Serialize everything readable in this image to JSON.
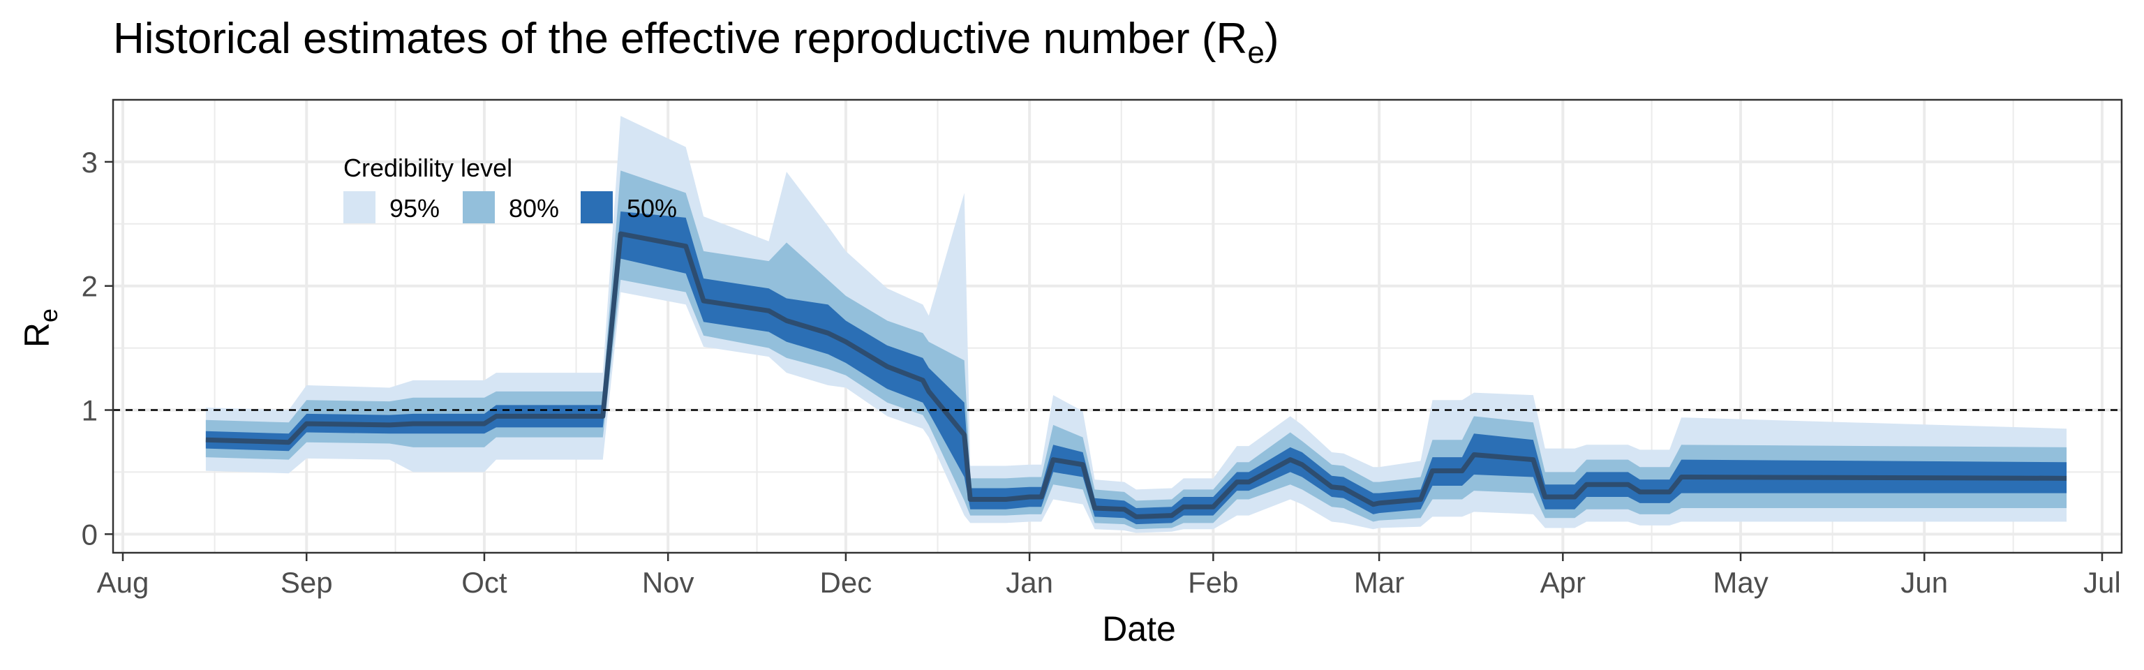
{
  "chart_data": {
    "type": "area",
    "title": {
      "main": "Historical estimates of the effective reproductive number (R",
      "sub": "e",
      "close": ")"
    },
    "xlabel": "Date",
    "ylabel": {
      "main": "R",
      "sub": "e"
    },
    "ylim": [
      -0.15,
      3.5
    ],
    "xlim": [
      "2020-08-01",
      "2021-07-01"
    ],
    "yticks": [
      0,
      1,
      2,
      3
    ],
    "ytick_labels": [
      "0",
      "1",
      "2",
      "3"
    ],
    "xticks": [
      "2020-08-01",
      "2020-09-01",
      "2020-10-01",
      "2020-11-01",
      "2020-12-01",
      "2021-01-01",
      "2021-02-01",
      "2021-03-01",
      "2021-04-01",
      "2021-05-01",
      "2021-06-01",
      "2021-07-01"
    ],
    "xtick_labels": [
      "Aug",
      "Sep",
      "Oct",
      "Nov",
      "Dec",
      "Jan",
      "Feb",
      "Mar",
      "Apr",
      "May",
      "Jun",
      "Jul"
    ],
    "grid": true,
    "reference_line": {
      "y": 1,
      "style": "dashed"
    },
    "legend": {
      "title": "Credibility level",
      "position": "top-left",
      "entries": [
        {
          "label": "95%",
          "color": "#d6e5f4"
        },
        {
          "label": "80%",
          "color": "#93bfdb"
        },
        {
          "label": "50%",
          "color": "#2b6fb5"
        }
      ]
    },
    "colors": {
      "line": "#2d4d70",
      "ci95": "#d6e5f4",
      "ci80": "#93bfdb",
      "ci50": "#2b6fb5",
      "grid": "#ebebeb"
    },
    "series": {
      "x": [
        "2020-08-15",
        "2020-08-29",
        "2020-09-01",
        "2020-09-15",
        "2020-09-19",
        "2020-10-01",
        "2020-10-03",
        "2020-10-21",
        "2020-10-24",
        "2020-11-04",
        "2020-11-07",
        "2020-11-18",
        "2020-11-21",
        "2020-11-28",
        "2020-12-01",
        "2020-12-08",
        "2020-12-14",
        "2020-12-15",
        "2020-12-21",
        "2020-12-22",
        "2020-12-28",
        "2021-01-01",
        "2021-01-03",
        "2021-01-05",
        "2021-01-10",
        "2021-01-12",
        "2021-01-17",
        "2021-01-19",
        "2021-01-25",
        "2021-01-27",
        "2021-02-01",
        "2021-02-05",
        "2021-02-07",
        "2021-02-14",
        "2021-02-16",
        "2021-02-21",
        "2021-02-23",
        "2021-02-28",
        "2021-03-01",
        "2021-03-08",
        "2021-03-10",
        "2021-03-15",
        "2021-03-17",
        "2021-03-27",
        "2021-03-29",
        "2021-04-03",
        "2021-04-05",
        "2021-04-12",
        "2021-04-14",
        "2021-04-19",
        "2021-04-21",
        "2021-06-25"
      ],
      "median": [
        0.76,
        0.74,
        0.89,
        0.88,
        0.89,
        0.89,
        0.95,
        0.95,
        2.42,
        2.32,
        1.88,
        1.8,
        1.72,
        1.62,
        1.55,
        1.35,
        1.24,
        1.15,
        0.8,
        0.28,
        0.28,
        0.3,
        0.3,
        0.6,
        0.56,
        0.21,
        0.2,
        0.14,
        0.15,
        0.22,
        0.22,
        0.42,
        0.42,
        0.6,
        0.56,
        0.38,
        0.37,
        0.24,
        0.25,
        0.28,
        0.51,
        0.51,
        0.64,
        0.6,
        0.3,
        0.3,
        0.4,
        0.4,
        0.34,
        0.34,
        0.46,
        0.45
      ],
      "lo50": [
        0.69,
        0.67,
        0.82,
        0.81,
        0.81,
        0.81,
        0.86,
        0.86,
        2.22,
        2.1,
        1.71,
        1.63,
        1.55,
        1.45,
        1.38,
        1.17,
        1.06,
        0.98,
        0.46,
        0.2,
        0.2,
        0.22,
        0.22,
        0.5,
        0.46,
        0.14,
        0.13,
        0.08,
        0.09,
        0.15,
        0.15,
        0.35,
        0.35,
        0.5,
        0.46,
        0.3,
        0.29,
        0.16,
        0.17,
        0.2,
        0.39,
        0.39,
        0.48,
        0.46,
        0.2,
        0.2,
        0.3,
        0.3,
        0.25,
        0.25,
        0.33,
        0.33
      ],
      "hi50": [
        0.83,
        0.81,
        0.97,
        0.96,
        0.97,
        0.97,
        1.04,
        1.04,
        2.6,
        2.55,
        2.06,
        1.98,
        1.9,
        1.85,
        1.72,
        1.52,
        1.42,
        1.34,
        1.06,
        0.37,
        0.37,
        0.38,
        0.38,
        0.72,
        0.66,
        0.29,
        0.27,
        0.21,
        0.22,
        0.3,
        0.3,
        0.5,
        0.5,
        0.7,
        0.66,
        0.47,
        0.46,
        0.33,
        0.33,
        0.36,
        0.62,
        0.62,
        0.81,
        0.76,
        0.4,
        0.4,
        0.5,
        0.5,
        0.44,
        0.44,
        0.6,
        0.58
      ],
      "lo80": [
        0.62,
        0.6,
        0.74,
        0.73,
        0.7,
        0.7,
        0.78,
        0.78,
        2.05,
        1.95,
        1.6,
        1.5,
        1.42,
        1.33,
        1.28,
        1.06,
        0.96,
        0.88,
        0.27,
        0.15,
        0.15,
        0.16,
        0.16,
        0.4,
        0.36,
        0.09,
        0.08,
        0.04,
        0.05,
        0.09,
        0.09,
        0.28,
        0.28,
        0.4,
        0.36,
        0.22,
        0.21,
        0.1,
        0.11,
        0.13,
        0.28,
        0.28,
        0.35,
        0.33,
        0.13,
        0.13,
        0.2,
        0.2,
        0.16,
        0.16,
        0.21,
        0.21
      ],
      "hi80": [
        0.92,
        0.9,
        1.08,
        1.07,
        1.1,
        1.1,
        1.15,
        1.15,
        2.93,
        2.75,
        2.28,
        2.2,
        2.35,
        2.05,
        1.92,
        1.72,
        1.62,
        1.55,
        1.4,
        0.45,
        0.45,
        0.46,
        0.46,
        0.88,
        0.78,
        0.36,
        0.34,
        0.27,
        0.28,
        0.36,
        0.36,
        0.58,
        0.58,
        0.82,
        0.75,
        0.56,
        0.55,
        0.42,
        0.42,
        0.46,
        0.76,
        0.76,
        0.95,
        0.9,
        0.5,
        0.5,
        0.6,
        0.6,
        0.54,
        0.54,
        0.72,
        0.7
      ],
      "lo95": [
        0.51,
        0.49,
        0.61,
        0.6,
        0.5,
        0.5,
        0.6,
        0.6,
        1.95,
        1.85,
        1.51,
        1.43,
        1.3,
        1.2,
        1.18,
        0.95,
        0.85,
        0.78,
        0.15,
        0.09,
        0.09,
        0.1,
        0.1,
        0.28,
        0.24,
        0.04,
        0.03,
        0.01,
        0.02,
        0.04,
        0.04,
        0.15,
        0.15,
        0.28,
        0.24,
        0.1,
        0.09,
        0.04,
        0.05,
        0.06,
        0.14,
        0.14,
        0.18,
        0.16,
        0.05,
        0.05,
        0.1,
        0.1,
        0.07,
        0.07,
        0.1,
        0.1
      ],
      "hi95": [
        1.02,
        1.0,
        1.2,
        1.18,
        1.24,
        1.24,
        1.3,
        1.3,
        3.37,
        3.12,
        2.56,
        2.36,
        2.92,
        2.48,
        2.28,
        1.98,
        1.85,
        1.76,
        2.75,
        0.55,
        0.55,
        0.56,
        0.56,
        1.12,
        0.99,
        0.44,
        0.42,
        0.36,
        0.37,
        0.45,
        0.45,
        0.71,
        0.71,
        0.95,
        0.88,
        0.66,
        0.65,
        0.54,
        0.54,
        0.59,
        1.08,
        1.08,
        1.14,
        1.12,
        0.69,
        0.69,
        0.72,
        0.72,
        0.68,
        0.68,
        0.94,
        0.85
      ]
    }
  }
}
